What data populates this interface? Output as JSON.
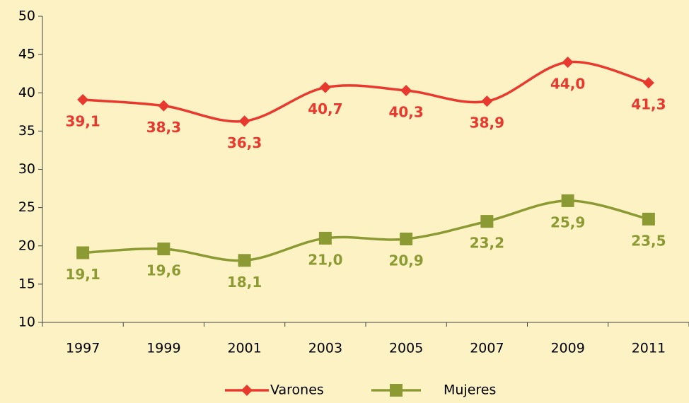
{
  "chart_data": {
    "type": "line",
    "categories": [
      "1997",
      "1999",
      "2001",
      "2003",
      "2005",
      "2007",
      "2009",
      "2011"
    ],
    "series": [
      {
        "name": "Varones",
        "color": "#e8392f",
        "marker": "diamond",
        "values": [
          39.1,
          38.3,
          36.3,
          40.7,
          40.3,
          38.9,
          44.0,
          41.3
        ],
        "value_labels": [
          "39,1",
          "38,3",
          "36,3",
          "40,7",
          "40,3",
          "38,9",
          "44,0",
          "41,3"
        ]
      },
      {
        "name": "Mujeres",
        "color": "#8c9a34",
        "marker": "square",
        "values": [
          19.1,
          19.6,
          18.1,
          21.0,
          20.9,
          23.2,
          25.9,
          23.5
        ],
        "value_labels": [
          "19,1",
          "19,6",
          "18,1",
          "21,0",
          "20,9",
          "23,2",
          "25,9",
          "23,5"
        ]
      }
    ],
    "ylim": [
      10,
      50
    ],
    "yticks": [
      10,
      15,
      20,
      25,
      30,
      35,
      40,
      45,
      50
    ],
    "grid": false,
    "smooth": true,
    "legend": "bottom"
  }
}
